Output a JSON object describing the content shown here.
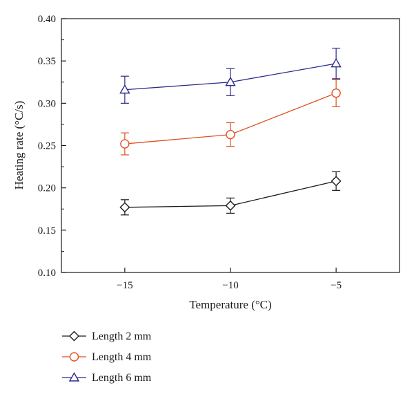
{
  "chart_data": {
    "type": "line",
    "xlabel": "Temperature (°C)",
    "ylabel": "Heating rate (°C/s)",
    "x": [
      -15,
      -10,
      -5
    ],
    "xlim": [
      -18,
      -2
    ],
    "ylim": [
      0.1,
      0.4
    ],
    "x_ticks": [
      -15,
      -10,
      -5
    ],
    "x_tick_labels": [
      "−15",
      "−10",
      "−5"
    ],
    "y_ticks": [
      0.1,
      0.15,
      0.2,
      0.25,
      0.3,
      0.35,
      0.4
    ],
    "y_tick_labels": [
      "0.10",
      "0.15",
      "0.20",
      "0.25",
      "0.30",
      "0.35",
      "0.40"
    ],
    "grid": false,
    "legend_position": "below",
    "series": [
      {
        "name": "Length 2 mm",
        "marker": "diamond",
        "color": "#1a1a1a",
        "values": [
          0.177,
          0.179,
          0.208
        ],
        "errors": [
          0.009,
          0.009,
          0.011
        ]
      },
      {
        "name": "Length 4 mm",
        "marker": "circle",
        "color": "#e0501e",
        "values": [
          0.252,
          0.263,
          0.312
        ],
        "errors": [
          0.013,
          0.014,
          0.016
        ]
      },
      {
        "name": "Length 6 mm",
        "marker": "triangle",
        "color": "#2a2a8c",
        "values": [
          0.316,
          0.325,
          0.347
        ],
        "errors": [
          0.016,
          0.016,
          0.018
        ]
      }
    ]
  }
}
